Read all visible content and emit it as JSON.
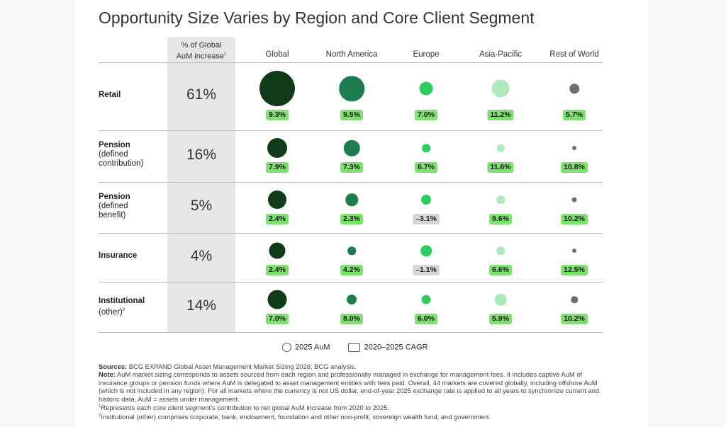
{
  "title": "Opportunity Size Varies by Region and Core Client Segment",
  "colors": {
    "global": "#103a18",
    "north_america": "#1e7d4e",
    "europe": "#2ecc5f",
    "asia_pacific": "#aeeab9",
    "rest_of_world": "#707070",
    "badge_positive": "#7ee06e",
    "badge_negative": "#d8d8d8",
    "shade": "#e6e6e6"
  },
  "pct_header": {
    "line1": "% of Global",
    "line2": "AuM increase",
    "footnote": "1"
  },
  "chart_data": {
    "type": "bubble-table",
    "title": "Opportunity Size Varies by Region and Core Client Segment",
    "columns": [
      "Global",
      "North America",
      "Europe",
      "Asia-Pacific",
      "Rest of World"
    ],
    "bubble_metric": "2025 AuM",
    "badge_metric": "2020–2025 CAGR",
    "rows": [
      {
        "name": "Retail",
        "sub": "",
        "footnote": "",
        "pct": "61%",
        "aum_relative": [
          1.0,
          0.71,
          0.38,
          0.5,
          0.27
        ],
        "cagr": [
          "9.3%",
          "9.5%",
          "7.0%",
          "11.2%",
          "5.7%"
        ],
        "cagr_values": [
          9.3,
          9.5,
          7.0,
          11.2,
          5.7
        ]
      },
      {
        "name": "Pension",
        "sub": "(defined contribution)",
        "footnote": "",
        "pct": "16%",
        "aum_relative": [
          0.56,
          0.45,
          0.23,
          0.21,
          0.1
        ],
        "cagr": [
          "7.9%",
          "7.3%",
          "6.7%",
          "11.6%",
          "10.8%"
        ],
        "cagr_values": [
          7.9,
          7.3,
          6.7,
          11.6,
          10.8
        ]
      },
      {
        "name": "Pension",
        "sub": "(defined benefit)",
        "footnote": "",
        "pct": "5%",
        "aum_relative": [
          0.52,
          0.35,
          0.28,
          0.23,
          0.14
        ],
        "cagr": [
          "2.4%",
          "2.3%",
          "–3.1%",
          "9.6%",
          "10.2%"
        ],
        "cagr_values": [
          2.4,
          2.3,
          -3.1,
          9.6,
          10.2
        ]
      },
      {
        "name": "Insurance",
        "sub": "",
        "footnote": "",
        "pct": "4%",
        "aum_relative": [
          0.46,
          0.23,
          0.31,
          0.23,
          0.08
        ],
        "cagr": [
          "2.4%",
          "4.2%",
          "–1.1%",
          "6.6%",
          "12.5%"
        ],
        "cagr_values": [
          2.4,
          4.2,
          -1.1,
          6.6,
          12.5
        ]
      },
      {
        "name": "Institutional",
        "sub": "(other)",
        "footnote": "2",
        "pct": "14%",
        "aum_relative": [
          0.54,
          0.28,
          0.26,
          0.33,
          0.19
        ],
        "cagr": [
          "7.0%",
          "8.0%",
          "6.0%",
          "5.9%",
          "10.2%"
        ],
        "cagr_values": [
          7.0,
          8.0,
          6.0,
          5.9,
          10.2
        ]
      }
    ]
  },
  "legend": {
    "aum": "2025 AuM",
    "cagr": "2020–2025 CAGR"
  },
  "notes": {
    "sources_label": "Sources:",
    "sources_text": " BCG EXPAND Global Asset Management Market Sizing 2026; BCG analysis.",
    "note_label": "Note:",
    "note_text": " AuM market sizing corresponds to assets sourced from each region and professionally managed in exchange for management fees. It includes captive AuM of insurance groups or pension funds where AuM is delegated to asset management entities with fees paid. Overall, 44 markets are covered globally, including offshore AuM (which is not included in any region). For all markets where the currency is not US dollar, end-of-year 2025 exchange rate is applied to all years to synchronize current and historic data. AuM = assets under management.",
    "footnote1_mark": "1",
    "footnote1": "Represents each core client segment’s contribution to net global AuM increase from 2020 to 2025.",
    "footnote2_mark": "2",
    "footnote2": "Institutional (other) comprises corporate, bank, endowment, foundation and other non-profit, sovereign wealth fund, and government."
  }
}
